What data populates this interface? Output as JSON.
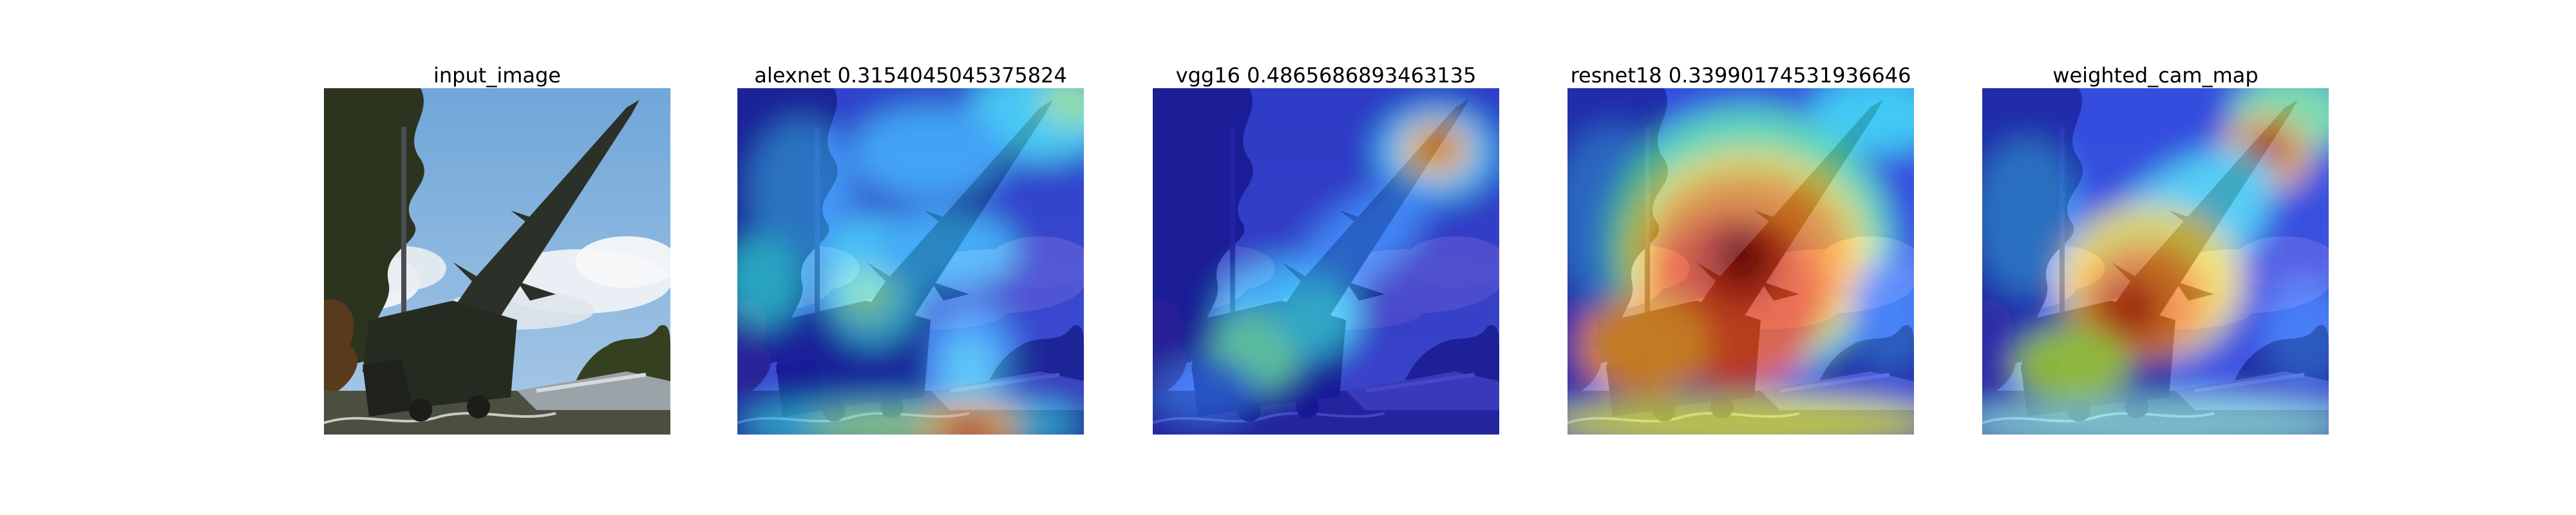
{
  "figure": {
    "panels": [
      {
        "key": "input",
        "title": "input_image"
      },
      {
        "key": "alexnet",
        "title": "alexnet 0.3154045045375824"
      },
      {
        "key": "vgg16",
        "title": "vgg16 0.4865686893463135"
      },
      {
        "key": "resnet18",
        "title": "resnet18 0.33990174531936646"
      },
      {
        "key": "weighted",
        "title": "weighted_cam_map"
      }
    ]
  },
  "colors": {
    "sky_blue": "#8ab6dd",
    "cloud_white": "#f2f4f7",
    "tree_dark": "#2f3520",
    "missile_dark": "#2c3228",
    "heat_red": "#d81a10",
    "heat_blue": "#1018c8"
  }
}
